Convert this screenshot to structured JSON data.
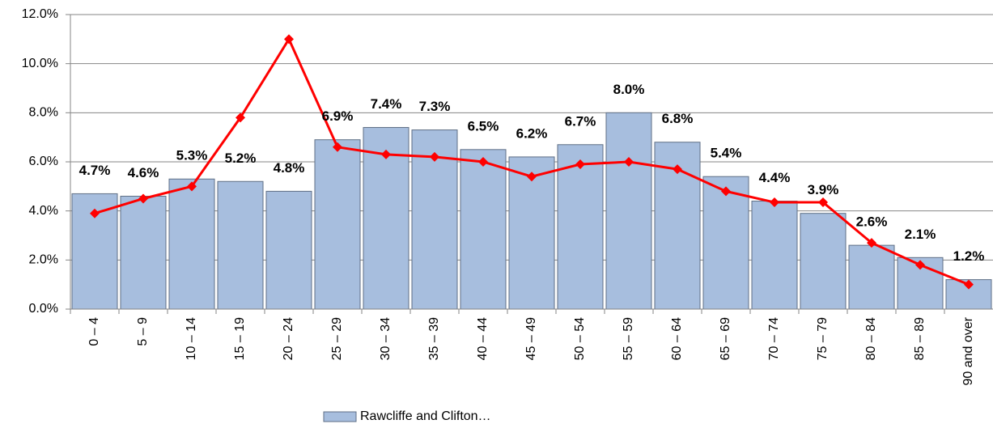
{
  "chart_data": {
    "type": "bar",
    "categories": [
      "0 – 4",
      "5 – 9",
      "10 – 14",
      "15 – 19",
      "20 – 24",
      "25 – 29",
      "30 – 34",
      "35 – 39",
      "40 – 44",
      "45 – 49",
      "50 – 54",
      "55 – 59",
      "60 – 64",
      "65 – 69",
      "70 – 74",
      "75 – 79",
      "80 – 84",
      "85 – 89",
      "90 and over"
    ],
    "series": [
      {
        "name": "Rawcliffe and Clifton…",
        "type": "bar",
        "color": "#a7bede",
        "values": [
          4.7,
          4.6,
          5.3,
          5.2,
          4.8,
          6.9,
          7.4,
          7.3,
          6.5,
          6.2,
          6.7,
          8.0,
          6.8,
          5.4,
          4.4,
          3.9,
          2.6,
          2.1,
          1.2
        ],
        "value_labels": [
          "4.7%",
          "4.6%",
          "5.3%",
          "5.2%",
          "4.8%",
          "6.9%",
          "7.4%",
          "7.3%",
          "6.5%",
          "6.2%",
          "6.7%",
          "8.0%",
          "6.8%",
          "5.4%",
          "4.4%",
          "3.9%",
          "2.6%",
          "2.1%",
          "1.2%"
        ]
      },
      {
        "type": "line",
        "color": "#ff0000",
        "values": [
          3.9,
          4.5,
          5.0,
          7.8,
          11.0,
          6.6,
          6.3,
          6.2,
          6.0,
          5.4,
          5.9,
          6.0,
          5.7,
          4.8,
          4.35,
          4.35,
          2.7,
          1.8,
          1.0
        ]
      }
    ],
    "ylim": [
      0,
      12
    ],
    "yticks": [
      {
        "value": 0,
        "label": "0.0%"
      },
      {
        "value": 2,
        "label": "2.0%"
      },
      {
        "value": 4,
        "label": "4.0%"
      },
      {
        "value": 6,
        "label": "6.0%"
      },
      {
        "value": 8,
        "label": "8.0%"
      },
      {
        "value": 10,
        "label": "10.0%"
      },
      {
        "value": 12,
        "label": "12.0%"
      }
    ],
    "grid": true,
    "legend": "bottom"
  }
}
